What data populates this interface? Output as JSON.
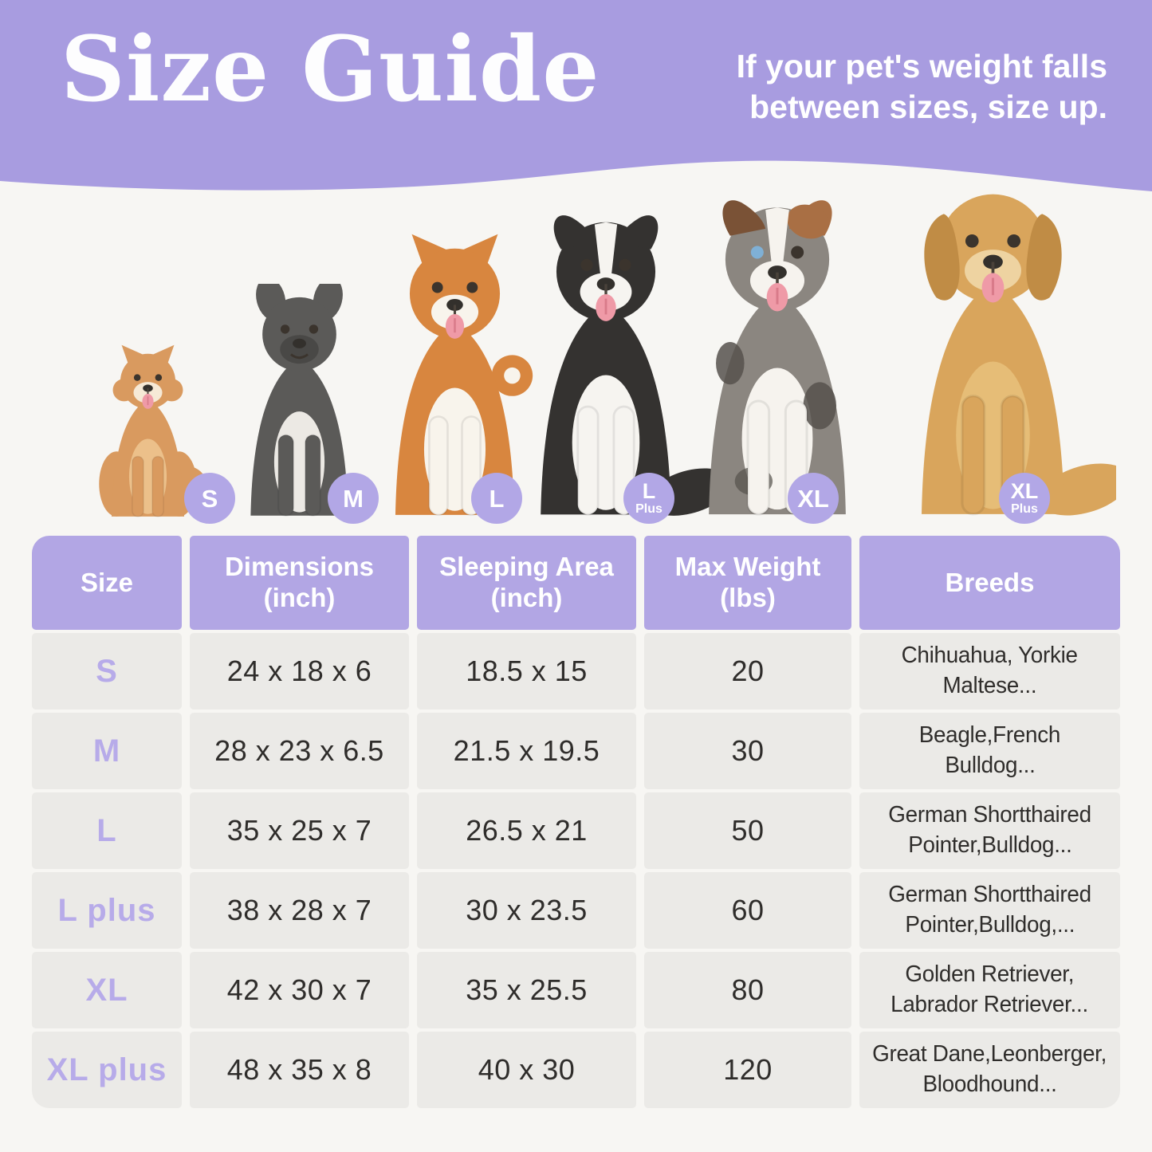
{
  "page": {
    "background": "#f7f6f3"
  },
  "header": {
    "background": "#a89ce0",
    "title": "Size Guide",
    "note_lines": [
      "If your pet's weight falls",
      "between sizes, size up."
    ]
  },
  "dogs": {
    "badge_bg": "#b2a7e6",
    "badge_text_color": "#ffffff",
    "items": [
      {
        "name": "pomeranian",
        "badge_lines": [
          "S"
        ],
        "colors": {
          "body": "#d99a5f",
          "chest": "#ecc08a",
          "muzzle": "#f6e9d6",
          "legs": "#d99a5f",
          "ear": "#c9894f"
        },
        "ear_type": "pointed",
        "tail_type": "fluff",
        "tongue": true,
        "fluffy": true
      },
      {
        "name": "french-bulldog",
        "badge_lines": [
          "M"
        ],
        "colors": {
          "body": "#5b5a58",
          "chest": "#ece9e4",
          "muzzle": "#494846",
          "legs": "#5b5a58",
          "ear": "#5b5a58"
        },
        "ear_type": "bat",
        "tail_type": "none",
        "tongue": false
      },
      {
        "name": "shiba-inu",
        "badge_lines": [
          "L"
        ],
        "colors": {
          "body": "#d8863f",
          "chest": "#f8f4ec",
          "muzzle": "#f8f4ec",
          "legs": "#f8f4ec",
          "ear": "#d8863f"
        },
        "ear_type": "pointed",
        "tail_type": "curl",
        "tongue": true
      },
      {
        "name": "border-collie",
        "badge_lines": [
          "L",
          "Plus"
        ],
        "colors": {
          "body": "#343230",
          "chest": "#f6f4f0",
          "muzzle": "#f6f4f0",
          "legs": "#f6f4f0",
          "ear": "#343230"
        },
        "ear_type": "semi",
        "tail_type": "bushy",
        "tongue": true,
        "blaze": true
      },
      {
        "name": "australian-shepherd",
        "badge_lines": [
          "XL"
        ],
        "colors": {
          "body": "#8b8680",
          "chest": "#f6f3ee",
          "muzzle": "#f6f3ee",
          "legs": "#f6f3ee",
          "ear": "#7a5236",
          "spot": "#56514c",
          "patch": "#a96f44"
        },
        "ear_type": "semi",
        "tail_type": "none",
        "tongue": true,
        "blaze": true,
        "merle": true,
        "eye_left": "#7fb0d6"
      },
      {
        "name": "golden-retriever",
        "badge_lines": [
          "XL",
          "Plus"
        ],
        "colors": {
          "body": "#d9a55c",
          "chest": "#e6bd77",
          "muzzle": "#eed3a1",
          "legs": "#d9a55c",
          "ear": "#c08c45"
        },
        "ear_type": "floppy",
        "tail_type": "bushy",
        "tongue": true
      }
    ]
  },
  "table": {
    "header_bg": "#b2a6e4",
    "header_text_color": "#ffffff",
    "cell_bg": "#ebeae7",
    "size_text_color": "#b7abe9",
    "value_text_color": "#2f2d2b",
    "columns": [
      [
        "Size"
      ],
      [
        "Dimensions",
        "(inch)"
      ],
      [
        "Sleeping Area",
        "(inch)"
      ],
      [
        "Max Weight",
        "(lbs)"
      ],
      [
        "Breeds"
      ]
    ],
    "rows": [
      {
        "size": "S",
        "dimensions": "24 x 18 x 6",
        "sleeping_area": "18.5 x 15",
        "max_weight": "20",
        "breeds": [
          "Chihuahua, Yorkie",
          "Maltese..."
        ]
      },
      {
        "size": "M",
        "dimensions": "28 x 23 x 6.5",
        "sleeping_area": "21.5 x 19.5",
        "max_weight": "30",
        "breeds": [
          "Beagle,French",
          "Bulldog..."
        ]
      },
      {
        "size": "L",
        "dimensions": "35 x 25 x 7",
        "sleeping_area": "26.5 x 21",
        "max_weight": "50",
        "breeds": [
          "German Shortthaired",
          "Pointer,Bulldog..."
        ]
      },
      {
        "size": "L plus",
        "dimensions": "38 x 28 x 7",
        "sleeping_area": "30 x 23.5",
        "max_weight": "60",
        "breeds": [
          "German Shortthaired",
          "Pointer,Bulldog,..."
        ]
      },
      {
        "size": "XL",
        "dimensions": "42 x 30 x 7",
        "sleeping_area": "35 x 25.5",
        "max_weight": "80",
        "breeds": [
          "Golden Retriever,",
          "Labrador Retriever..."
        ]
      },
      {
        "size": "XL plus",
        "dimensions": "48 x 35 x 8",
        "sleeping_area": "40 x 30",
        "max_weight": "120",
        "breeds": [
          "Great Dane,Leonberger,",
          "Bloodhound..."
        ]
      }
    ]
  }
}
